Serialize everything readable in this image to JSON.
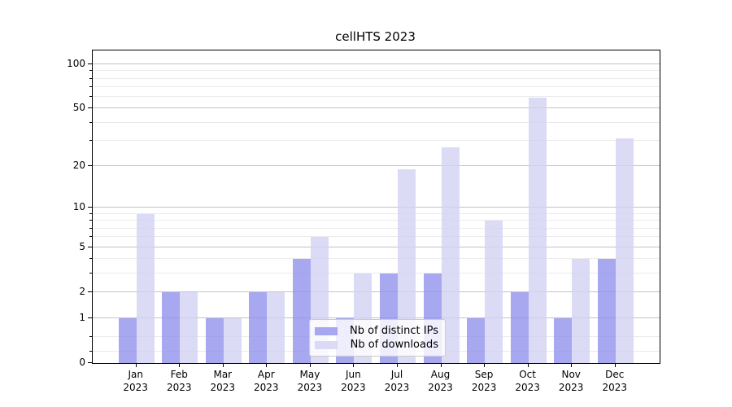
{
  "title": "cellHTS 2023",
  "chart_data": {
    "type": "bar",
    "title": "cellHTS 2023",
    "months": [
      "Jan",
      "Feb",
      "Mar",
      "Apr",
      "May",
      "Jun",
      "Jul",
      "Aug",
      "Sep",
      "Oct",
      "Nov",
      "Dec"
    ],
    "year": "2023",
    "categories": [
      "Jan 2023",
      "Feb 2023",
      "Mar 2023",
      "Apr 2023",
      "May 2023",
      "Jun 2023",
      "Jul 2023",
      "Aug 2023",
      "Sep 2023",
      "Oct 2023",
      "Nov 2023",
      "Dec 2023"
    ],
    "series": [
      {
        "name": "Nb of distinct IPs",
        "color": "rgba(146,146,236,0.8)",
        "values": [
          1,
          2,
          1,
          2,
          4,
          1,
          3,
          3,
          1,
          2,
          1,
          4
        ]
      },
      {
        "name": "Nb of downloads",
        "color": "rgba(210,210,244,0.8)",
        "values": [
          9,
          2,
          1,
          2,
          6,
          3,
          19,
          27,
          8,
          59,
          4,
          31
        ]
      }
    ],
    "yscale": "log10(1+y)",
    "y_major_ticks": [
      0,
      1,
      2,
      5,
      10,
      20,
      50,
      100
    ],
    "y_minor_ticks": [
      0.2,
      0.5,
      3,
      4,
      6,
      7,
      8,
      9,
      30,
      40,
      60,
      70,
      80,
      90
    ],
    "ylim": [
      0,
      125
    ],
    "grid": true,
    "legend_position": "bottom-center",
    "grid_major_color": "#c3c3c3",
    "grid_minor_color": "#ebebeb"
  }
}
